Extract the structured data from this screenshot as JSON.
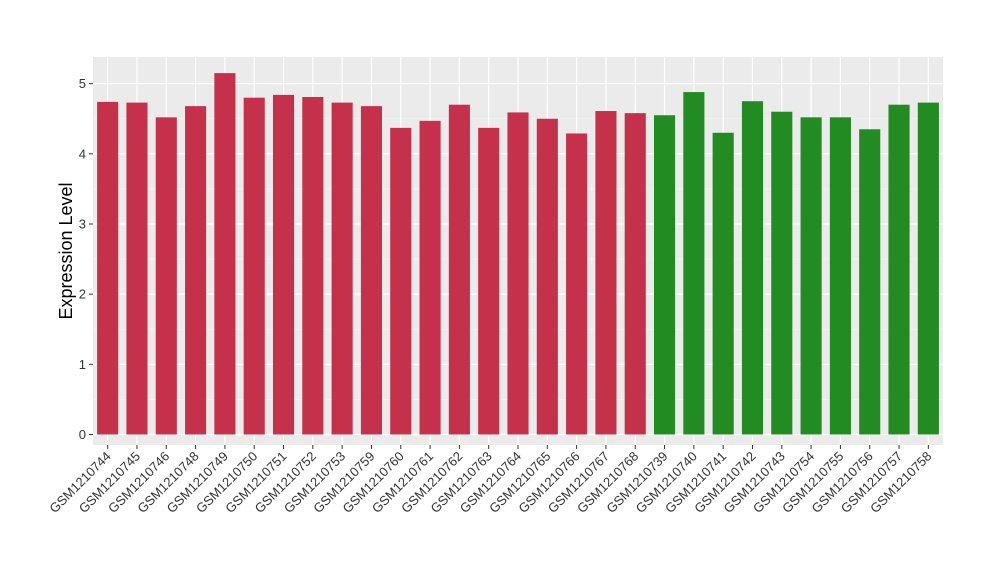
{
  "chart_data": {
    "type": "bar",
    "ylabel": "Expression Level",
    "xlabel": "",
    "ylim": [
      -0.15,
      5.38
    ],
    "yticks": [
      0,
      1,
      2,
      3,
      4,
      5
    ],
    "grid": true,
    "legend": "none",
    "categories": [
      "GSM1210744",
      "GSM1210745",
      "GSM1210746",
      "GSM1210748",
      "GSM1210749",
      "GSM1210750",
      "GSM1210751",
      "GSM1210752",
      "GSM1210753",
      "GSM1210759",
      "GSM1210760",
      "GSM1210761",
      "GSM1210762",
      "GSM1210763",
      "GSM1210764",
      "GSM1210765",
      "GSM1210766",
      "GSM1210767",
      "GSM1210768",
      "GSM1210739",
      "GSM1210740",
      "GSM1210741",
      "GSM1210742",
      "GSM1210743",
      "GSM1210754",
      "GSM1210755",
      "GSM1210756",
      "GSM1210757",
      "GSM1210758"
    ],
    "values": [
      4.74,
      4.73,
      4.52,
      4.68,
      5.15,
      4.8,
      4.84,
      4.81,
      4.73,
      4.68,
      4.37,
      4.47,
      4.7,
      4.37,
      4.59,
      4.5,
      4.29,
      4.61,
      4.58,
      4.55,
      4.88,
      4.3,
      4.75,
      4.6,
      4.52,
      4.52,
      4.35,
      4.7,
      4.73
    ],
    "groups": [
      0,
      0,
      0,
      0,
      0,
      0,
      0,
      0,
      0,
      0,
      0,
      0,
      0,
      0,
      0,
      0,
      0,
      0,
      0,
      1,
      1,
      1,
      1,
      1,
      1,
      1,
      1,
      1,
      1
    ],
    "colors": [
      "#c5314a",
      "#228b22"
    ]
  }
}
